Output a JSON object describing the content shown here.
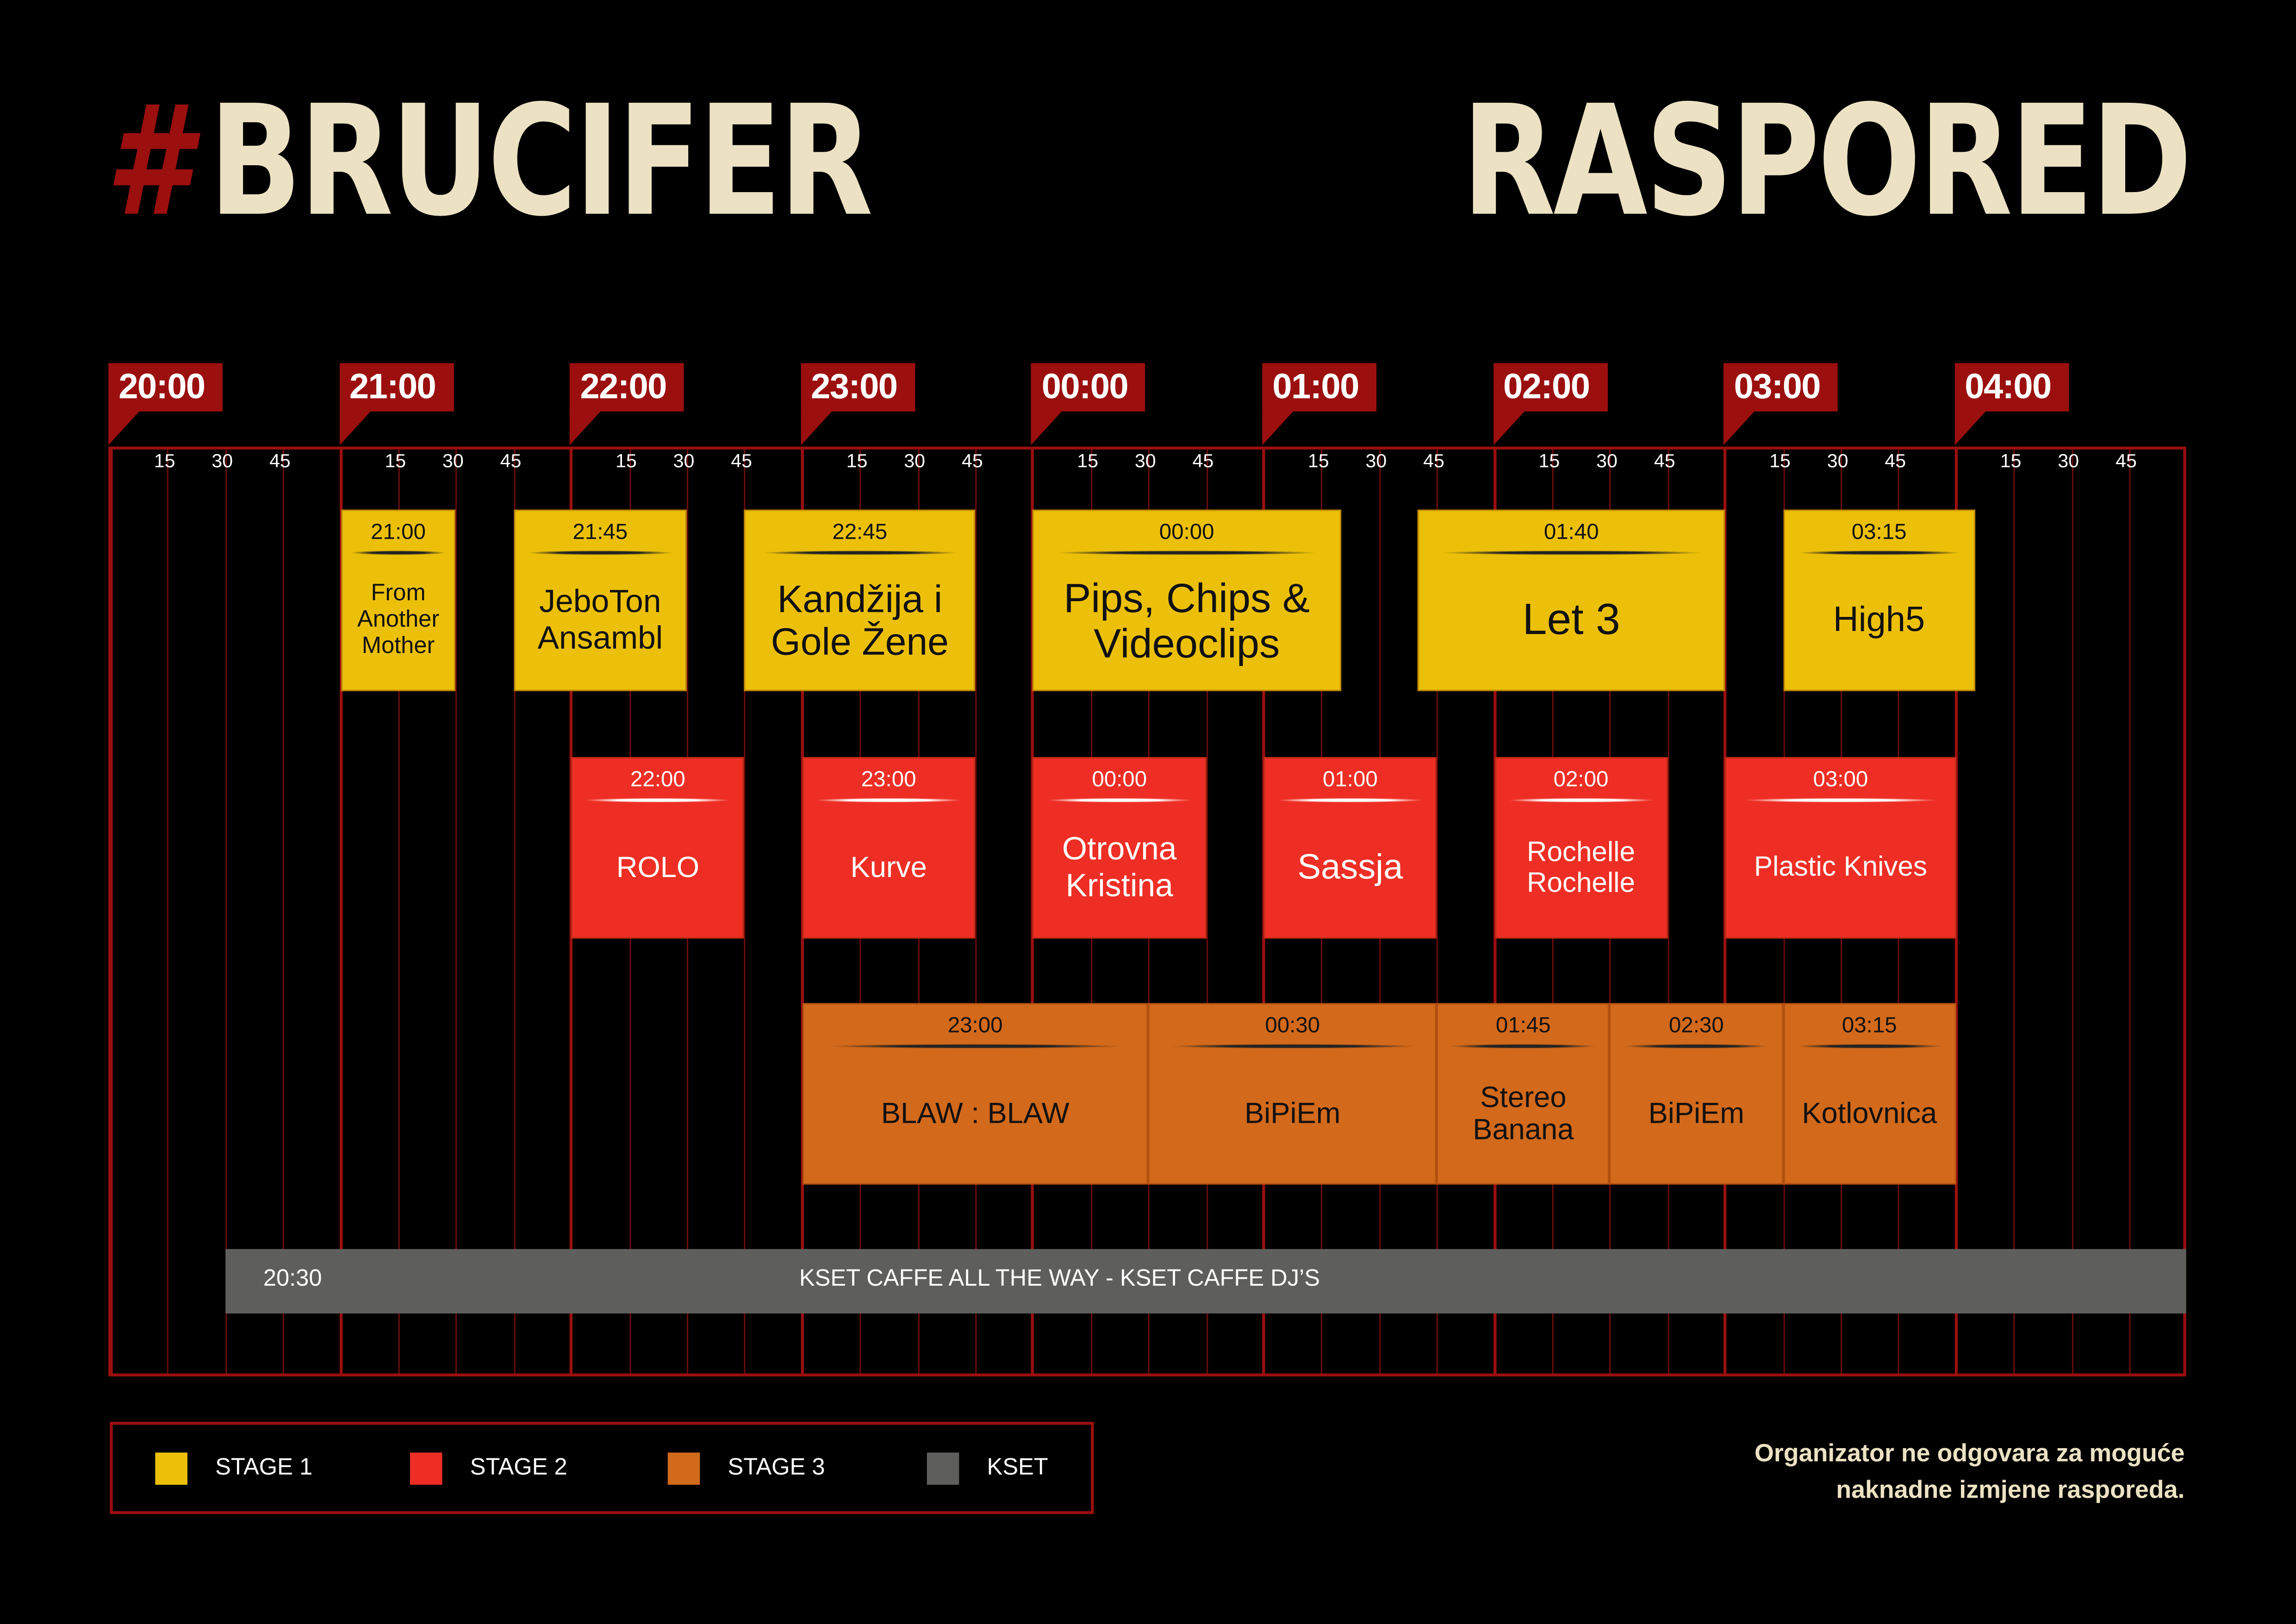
{
  "header": {
    "hash": "#",
    "brand": "BRUCIFER",
    "title": "RASPORED"
  },
  "timeline": {
    "hours": [
      "20:00",
      "21:00",
      "22:00",
      "23:00",
      "00:00",
      "01:00",
      "02:00",
      "03:00",
      "04:00"
    ],
    "quarter_labels": [
      "15",
      "30",
      "45"
    ]
  },
  "colors": {
    "stage1": "#ecc008",
    "stage2": "#ee2e24",
    "stage3": "#d2691b",
    "kset": "#5e5f5d",
    "accent": "#9b0f0f",
    "cream": "#ece2c3"
  },
  "stages": [
    {
      "key": "stage1",
      "events": [
        {
          "time": "21:00",
          "end": "21:30",
          "name": "From Another Mother"
        },
        {
          "time": "21:45",
          "end": "22:30",
          "name": "JeboTon Ansambl"
        },
        {
          "time": "22:45",
          "end": "23:45",
          "name": "Kandžija i Gole Žene"
        },
        {
          "time": "00:00",
          "end": "01:20",
          "name": "Pips, Chips & Videoclips"
        },
        {
          "time": "01:40",
          "end": "03:00",
          "name": "Let 3"
        },
        {
          "time": "03:15",
          "end": "04:05",
          "name": "High5"
        }
      ]
    },
    {
      "key": "stage2",
      "events": [
        {
          "time": "22:00",
          "end": "22:45",
          "name": "ROLO"
        },
        {
          "time": "23:00",
          "end": "23:45",
          "name": "Kurve"
        },
        {
          "time": "00:00",
          "end": "00:45",
          "name": "Otrovna Kristina"
        },
        {
          "time": "01:00",
          "end": "01:45",
          "name": "Sassja"
        },
        {
          "time": "02:00",
          "end": "02:45",
          "name": "Rochelle Rochelle"
        },
        {
          "time": "03:00",
          "end": "04:00",
          "name": "Plastic Knives"
        }
      ]
    },
    {
      "key": "stage3",
      "events": [
        {
          "time": "23:00",
          "end": "00:30",
          "name": "BLAW : BLAW"
        },
        {
          "time": "00:30",
          "end": "01:45",
          "name": "BiPiEm"
        },
        {
          "time": "01:45",
          "end": "02:30",
          "name": "Stereo Banana"
        },
        {
          "time": "02:30",
          "end": "03:15",
          "name": "BiPiEm"
        },
        {
          "time": "03:15",
          "end": "04:00",
          "name": "Kotlovnica"
        }
      ]
    }
  ],
  "kset": {
    "time": "20:30",
    "end": "05:00",
    "name": "KSET CAFFE ALL THE WAY - KSET CAFFE DJ’S"
  },
  "legend": [
    {
      "key": "stage1",
      "label": "STAGE 1"
    },
    {
      "key": "stage2",
      "label": "STAGE 2"
    },
    {
      "key": "stage3",
      "label": "STAGE 3"
    },
    {
      "key": "kset",
      "label": "KSET"
    }
  ],
  "note": {
    "line1": "Organizator ne odgovara za moguće",
    "line2": "naknadne izmjene rasporeda."
  }
}
